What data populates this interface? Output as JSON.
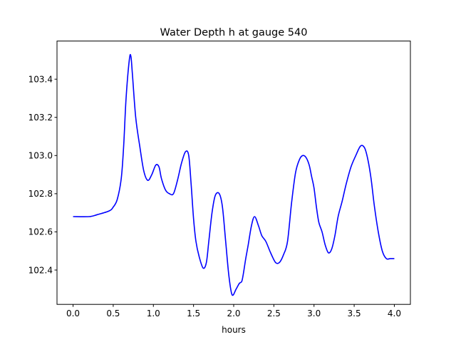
{
  "chart_data": {
    "type": "line",
    "title": "Water Depth h at gauge 540",
    "xlabel": "hours",
    "ylabel": "",
    "xlim": [
      -0.2,
      4.2
    ],
    "ylim": [
      102.22,
      103.6
    ],
    "grid": false,
    "x_ticks": [
      0.0,
      0.5,
      1.0,
      1.5,
      2.0,
      2.5,
      3.0,
      3.5,
      4.0
    ],
    "x_tick_labels": [
      "0.0",
      "0.5",
      "1.0",
      "1.5",
      "2.0",
      "2.5",
      "3.0",
      "3.5",
      "4.0"
    ],
    "y_ticks": [
      102.4,
      102.6,
      102.8,
      103.0,
      103.2,
      103.4
    ],
    "y_tick_labels": [
      "102.4",
      "102.6",
      "102.8",
      "103.0",
      "103.2",
      "103.4"
    ],
    "series": [
      {
        "color": "#0000ff",
        "x": [
          0.0,
          0.2,
          0.3,
          0.45,
          0.5,
          0.55,
          0.6,
          0.63,
          0.66,
          0.7,
          0.72,
          0.74,
          0.78,
          0.83,
          0.88,
          0.93,
          0.98,
          1.03,
          1.07,
          1.1,
          1.15,
          1.2,
          1.25,
          1.3,
          1.35,
          1.4,
          1.44,
          1.47,
          1.5,
          1.53,
          1.57,
          1.62,
          1.66,
          1.69,
          1.73,
          1.77,
          1.82,
          1.86,
          1.9,
          1.94,
          1.98,
          2.03,
          2.07,
          2.1,
          2.12,
          2.15,
          2.18,
          2.22,
          2.26,
          2.31,
          2.35,
          2.4,
          2.46,
          2.52,
          2.57,
          2.62,
          2.67,
          2.72,
          2.77,
          2.82,
          2.86,
          2.9,
          2.94,
          2.97,
          3.0,
          3.03,
          3.06,
          3.1,
          3.14,
          3.18,
          3.22,
          3.26,
          3.3,
          3.35,
          3.4,
          3.46,
          3.52,
          3.58,
          3.63,
          3.67,
          3.71,
          3.75,
          3.8,
          3.85,
          3.9,
          3.95,
          4.0
        ],
        "y": [
          102.68,
          102.68,
          102.69,
          102.71,
          102.73,
          102.77,
          102.88,
          103.05,
          103.3,
          103.5,
          103.52,
          103.42,
          103.2,
          103.05,
          102.92,
          102.87,
          102.9,
          102.95,
          102.94,
          102.88,
          102.82,
          102.8,
          102.8,
          102.87,
          102.96,
          103.02,
          103.0,
          102.85,
          102.67,
          102.55,
          102.47,
          102.41,
          102.44,
          102.55,
          102.7,
          102.79,
          102.8,
          102.73,
          102.55,
          102.37,
          102.27,
          102.3,
          102.33,
          102.34,
          102.38,
          102.46,
          102.53,
          102.63,
          102.68,
          102.63,
          102.58,
          102.55,
          102.49,
          102.44,
          102.44,
          102.48,
          102.55,
          102.75,
          102.91,
          102.98,
          103.0,
          102.99,
          102.95,
          102.89,
          102.83,
          102.73,
          102.65,
          102.6,
          102.53,
          102.49,
          102.51,
          102.58,
          102.68,
          102.76,
          102.85,
          102.94,
          103.0,
          103.05,
          103.04,
          102.98,
          102.88,
          102.74,
          102.6,
          102.5,
          102.46,
          102.46,
          102.46
        ]
      }
    ]
  }
}
